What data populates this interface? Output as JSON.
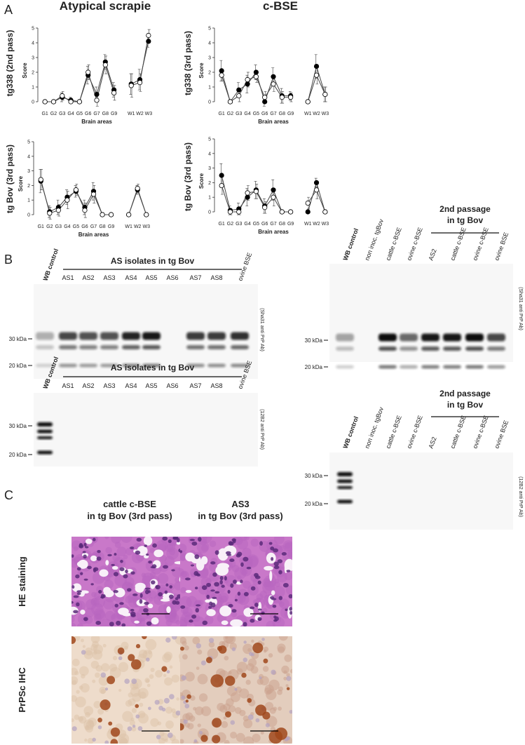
{
  "panels": [
    "A",
    "B",
    "C"
  ],
  "chart_data": [
    {
      "type": "line",
      "title": "Atypical scrapie",
      "row_label": "tg338 (2nd pass)",
      "ylabel": "Score",
      "xlabel": "Brain areas",
      "categories": [
        "G1",
        "G2",
        "G3",
        "G4",
        "G5",
        "G6",
        "G7",
        "G8",
        "G9",
        null,
        "W1",
        "W2",
        "W3"
      ],
      "ylim": [
        0,
        5
      ],
      "yticks": [
        0,
        1,
        2,
        3,
        4,
        5
      ],
      "series": [
        {
          "color": "#000000",
          "values": [
            0,
            0,
            0.3,
            0.1,
            0,
            1.8,
            0.5,
            2.7,
            0.8,
            null,
            1.2,
            1.5,
            4.1
          ],
          "errors": [
            0.1,
            0.1,
            0.3,
            0.2,
            0.1,
            0.6,
            0.5,
            0.5,
            0.5,
            null,
            0.7,
            0.7,
            0.4
          ]
        },
        {
          "color": "#ffffff",
          "values": [
            0,
            0,
            0.4,
            0,
            0,
            2.0,
            0.1,
            2.5,
            0.6,
            null,
            1.1,
            1.3,
            4.5
          ],
          "errors": [
            0.1,
            0.1,
            0.3,
            0.1,
            0.1,
            0.5,
            0.4,
            0.6,
            0.5,
            null,
            0.8,
            0.6,
            0.4
          ]
        }
      ]
    },
    {
      "type": "line",
      "title": "c-BSE",
      "row_label": "tg338 (3rd pass)",
      "ylabel": "Score",
      "xlabel": "Brain areas",
      "categories": [
        "G1",
        "G2",
        "G3",
        "G4",
        "G5",
        "G6",
        "G7",
        "G8",
        "G9",
        null,
        "W1",
        "W2",
        "W3"
      ],
      "ylim": [
        0,
        5
      ],
      "yticks": [
        0,
        1,
        2,
        3,
        4,
        5
      ],
      "series": [
        {
          "color": "#000000",
          "values": [
            2.1,
            0,
            0.8,
            1.2,
            2.0,
            0,
            1.7,
            0.4,
            0.4,
            null,
            0,
            2.4,
            0.5
          ],
          "errors": [
            0.7,
            0.1,
            0.5,
            0.6,
            0.5,
            0.3,
            0.6,
            0.5,
            0.3,
            null,
            0.1,
            0.8,
            0.5
          ]
        },
        {
          "color": "#ffffff",
          "values": [
            1.8,
            0,
            0.4,
            1.5,
            1.7,
            0.3,
            1.2,
            0.3,
            0.3,
            null,
            0,
            1.8,
            0.5
          ],
          "errors": [
            0.4,
            0.1,
            0.4,
            0.5,
            0.4,
            0.4,
            0.5,
            0.4,
            0.3,
            null,
            0.1,
            0.6,
            0.5
          ]
        }
      ]
    },
    {
      "type": "line",
      "row_label": "tg Bov (3rd pass)",
      "ylabel": "Score",
      "xlabel": "Brain areas",
      "categories": [
        "G1",
        "G2",
        "G3",
        "G4",
        "G5",
        "G6",
        "G7",
        "G8",
        "G9",
        null,
        "W1",
        "W2",
        "W3"
      ],
      "ylim": [
        0,
        5
      ],
      "yticks": [
        0,
        1,
        2,
        3,
        4,
        5
      ],
      "series": [
        {
          "color": "#000000",
          "values": [
            2.3,
            0.2,
            0.5,
            1.2,
            1.6,
            0.5,
            1.6,
            0,
            0,
            null,
            0,
            1.7,
            0
          ],
          "errors": [
            0.8,
            0.4,
            0.5,
            0.5,
            0.4,
            0.5,
            0.6,
            0.1,
            0.1,
            null,
            0.1,
            0.3,
            0.1
          ]
        },
        {
          "color": "#ffffff",
          "values": [
            2.4,
            0.1,
            0.3,
            1.0,
            1.7,
            0.3,
            1.4,
            0,
            0,
            null,
            0,
            1.8,
            0
          ],
          "errors": [
            0.7,
            0.4,
            0.4,
            0.6,
            0.4,
            0.5,
            0.6,
            0.1,
            0.1,
            null,
            0.1,
            0.3,
            0.1
          ]
        }
      ]
    },
    {
      "type": "line",
      "row_label": "tg Bov (3rd pass)",
      "ylabel": "Score",
      "xlabel": "Brain areas",
      "categories": [
        "G1",
        "G2",
        "G3",
        "G4",
        "G5",
        "G6",
        "G7",
        "G8",
        "G9",
        null,
        "W1",
        "W2",
        "W3"
      ],
      "ylim": [
        0,
        5
      ],
      "yticks": [
        0,
        1,
        2,
        3,
        4,
        5
      ],
      "series": [
        {
          "color": "#000000",
          "values": [
            2.5,
            0.1,
            0.2,
            1.0,
            1.5,
            0.4,
            1.5,
            0,
            0,
            null,
            0,
            2.0,
            0
          ],
          "errors": [
            0.8,
            0.3,
            0.4,
            0.6,
            0.6,
            0.5,
            0.7,
            0.1,
            0.1,
            null,
            0.1,
            0.3,
            0.1
          ]
        },
        {
          "color": "#ffffff",
          "values": [
            1.8,
            0,
            0,
            1.3,
            1.4,
            0.3,
            1.0,
            0,
            0,
            null,
            0.6,
            1.5,
            0
          ],
          "errors": [
            0.6,
            0.2,
            0.2,
            0.5,
            0.5,
            0.4,
            0.6,
            0.1,
            0.1,
            null,
            0.4,
            0.6,
            0.1
          ]
        }
      ]
    }
  ],
  "panel_b": {
    "blots": [
      {
        "group_label": "AS isolates in tg Bov",
        "lanes": [
          "WB control",
          "AS1",
          "AS2",
          "AS3",
          "AS4",
          "AS5",
          "AS6",
          "AS7",
          "AS8",
          "ovine BSE"
        ],
        "markers": [
          "30 kDa",
          "20 kDa"
        ],
        "antibody": "(Sha31 anti PrP Ab)"
      },
      {
        "group_label": "AS isolates in tg Bov",
        "lanes": [
          "WB control",
          "AS1",
          "AS2",
          "AS3",
          "AS4",
          "AS5",
          "AS6",
          "AS7",
          "AS8",
          "ovine BSE"
        ],
        "markers": [
          "30 kDa",
          "20 kDa"
        ],
        "antibody": "(12B2 anti PrP Ab)"
      },
      {
        "group_label": [
          "2nd passage",
          "in tg Bov"
        ],
        "lanes": [
          "WB control",
          "non inoc. tgBov",
          "cattle c-BSE",
          "ovine c-BSE",
          "AS2",
          "cattle c-BSE",
          "ovine c-BSE",
          "ovine BSE"
        ],
        "markers": [
          "30 kDa",
          "20 kDa"
        ],
        "antibody": "(Sha31 anti PrP Ab)"
      },
      {
        "group_label": [
          "2nd passage",
          "in tg Bov"
        ],
        "lanes": [
          "WB control",
          "non inoc. tgBov",
          "cattle c-BSE",
          "ovine c-BSE",
          "AS2",
          "cattle c-BSE",
          "ovine c-BSE",
          "ovine BSE"
        ],
        "markers": [
          "30 kDa",
          "20 kDa"
        ],
        "antibody": "(12B2 anti PrP Ab)"
      }
    ]
  },
  "panel_c": {
    "columns": [
      [
        "cattle c-BSE",
        "in tg Bov (3rd pass)"
      ],
      [
        "AS3",
        "in tg Bov (3rd pass)"
      ]
    ],
    "rows": [
      "HE staining",
      "PrPSc IHC"
    ]
  }
}
